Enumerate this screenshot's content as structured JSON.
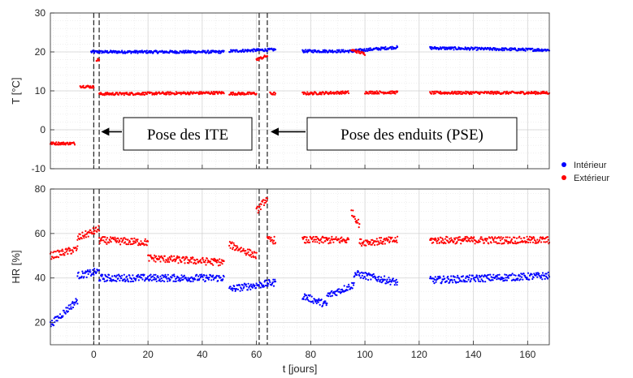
{
  "chart_data": [
    {
      "id": "temp",
      "type": "scatter",
      "title": "",
      "xlabel": "",
      "ylabel": "T [°C]",
      "xlim": [
        -16,
        168
      ],
      "ylim": [
        -10,
        30
      ],
      "yticks": [
        -10,
        0,
        10,
        20,
        30
      ],
      "xticks": [
        0,
        20,
        40,
        60,
        80,
        100,
        120,
        140,
        160
      ],
      "grid": true,
      "event_lines": [
        0,
        2,
        61,
        64
      ],
      "annotations": [
        {
          "text": "Pose des ITE",
          "arrow_to_x": 1.5,
          "arrow_y": -0.5
        },
        {
          "text": "Pose des enduits (PSE)",
          "arrow_to_x": 64,
          "arrow_y": -0.5
        }
      ],
      "series": [
        {
          "name": "Intérieur",
          "color": "#0000ff",
          "segments": [
            {
              "x": [
                -1,
                48
              ],
              "y": [
                20,
                20
              ]
            },
            {
              "x": [
                50,
                67
              ],
              "y": [
                20.2,
                20.6
              ]
            },
            {
              "x": [
                77,
                96
              ],
              "y": [
                20.2,
                20.2
              ]
            },
            {
              "x": [
                96,
                112
              ],
              "y": [
                20.3,
                21.2
              ]
            },
            {
              "x": [
                124,
                168
              ],
              "y": [
                21,
                20.5
              ]
            }
          ]
        },
        {
          "name": "Extérieur",
          "color": "#ff0000",
          "segments": [
            {
              "x": [
                -16,
                -7
              ],
              "y": [
                -3.5,
                -3.5
              ]
            },
            {
              "x": [
                -5,
                0
              ],
              "y": [
                11.2,
                11
              ]
            },
            {
              "x": [
                1,
                2
              ],
              "y": [
                18,
                18
              ]
            },
            {
              "x": [
                2,
                48
              ],
              "y": [
                9.2,
                9.5
              ]
            },
            {
              "x": [
                50,
                60
              ],
              "y": [
                9.3,
                9.3
              ]
            },
            {
              "x": [
                60,
                64
              ],
              "y": [
                18,
                19
              ]
            },
            {
              "x": [
                65,
                67
              ],
              "y": [
                9.3,
                9.3
              ]
            },
            {
              "x": [
                77,
                94
              ],
              "y": [
                9.3,
                9.6
              ]
            },
            {
              "x": [
                95,
                100
              ],
              "y": [
                20.5,
                19.5
              ]
            },
            {
              "x": [
                100,
                112
              ],
              "y": [
                9.6,
                9.6
              ]
            },
            {
              "x": [
                124,
                168
              ],
              "y": [
                9.5,
                9.5
              ]
            }
          ]
        }
      ]
    },
    {
      "id": "hr",
      "type": "scatter",
      "title": "",
      "xlabel": "t [jours]",
      "ylabel": "HR [%]",
      "xlim": [
        -16,
        168
      ],
      "ylim": [
        10,
        80
      ],
      "yticks": [
        20,
        40,
        60,
        80
      ],
      "xticks": [
        0,
        20,
        40,
        60,
        80,
        100,
        120,
        140,
        160
      ],
      "xticklabels": [
        "0",
        "20",
        "40",
        "60",
        "80",
        "100",
        "120",
        "140",
        "160"
      ],
      "grid": true,
      "event_lines": [
        0,
        2,
        61,
        64
      ],
      "series": [
        {
          "name": "Intérieur",
          "color": "#0000ff",
          "segments": [
            {
              "x": [
                -16,
                -6
              ],
              "y": [
                19,
                30
              ]
            },
            {
              "x": [
                -6,
                2
              ],
              "y": [
                41,
                43
              ]
            },
            {
              "x": [
                2,
                48
              ],
              "y": [
                40,
                40
              ]
            },
            {
              "x": [
                50,
                67
              ],
              "y": [
                35,
                38
              ]
            },
            {
              "x": [
                77,
                86
              ],
              "y": [
                32,
                28
              ]
            },
            {
              "x": [
                86,
                96
              ],
              "y": [
                32,
                37
              ]
            },
            {
              "x": [
                96,
                112
              ],
              "y": [
                42,
                38
              ]
            },
            {
              "x": [
                124,
                168
              ],
              "y": [
                39,
                41
              ]
            }
          ]
        },
        {
          "name": "Extérieur",
          "color": "#ff0000",
          "segments": [
            {
              "x": [
                -16,
                -6
              ],
              "y": [
                50,
                53
              ]
            },
            {
              "x": [
                -6,
                2
              ],
              "y": [
                58,
                62
              ]
            },
            {
              "x": [
                2,
                20
              ],
              "y": [
                57,
                56
              ]
            },
            {
              "x": [
                20,
                48
              ],
              "y": [
                49,
                47
              ]
            },
            {
              "x": [
                50,
                60
              ],
              "y": [
                55,
                50
              ]
            },
            {
              "x": [
                60,
                64
              ],
              "y": [
                70,
                76
              ]
            },
            {
              "x": [
                64,
                67
              ],
              "y": [
                57,
                57
              ]
            },
            {
              "x": [
                77,
                94
              ],
              "y": [
                57,
                57
              ]
            },
            {
              "x": [
                95,
                98
              ],
              "y": [
                70,
                64
              ]
            },
            {
              "x": [
                98,
                112
              ],
              "y": [
                56,
                57
              ]
            },
            {
              "x": [
                124,
                168
              ],
              "y": [
                57,
                57
              ]
            }
          ]
        }
      ]
    }
  ],
  "legend": {
    "placement": "right",
    "items": [
      {
        "label": "Intérieur",
        "color": "#0000ff"
      },
      {
        "label": "Extérieur",
        "color": "#ff0000"
      }
    ]
  }
}
